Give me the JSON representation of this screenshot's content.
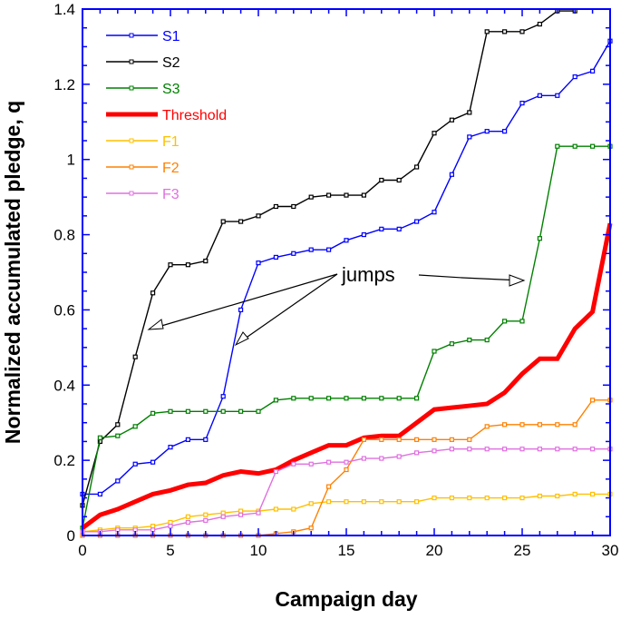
{
  "chart_data": {
    "type": "line",
    "title": "",
    "xlabel": "Campaign day",
    "ylabel": "Normalized accumulated pledge, q",
    "xlim": [
      0,
      30
    ],
    "ylim": [
      0,
      1.4
    ],
    "xticks": [
      "0",
      "5",
      "10",
      "15",
      "20",
      "25",
      "30"
    ],
    "yticks": [
      "0",
      "0.2",
      "0.4",
      "0.6",
      "0.8",
      "1",
      "1.2",
      "1.4"
    ],
    "grid": false,
    "legend_position": "top-left",
    "annotation": "jumps",
    "series": [
      {
        "name": "S1",
        "color": "#0000ff",
        "marker": "square",
        "values": [
          0.11,
          0.11,
          0.145,
          0.19,
          0.195,
          0.235,
          0.255,
          0.255,
          0.37,
          0.6,
          0.725,
          0.74,
          0.75,
          0.76,
          0.76,
          0.785,
          0.8,
          0.815,
          0.815,
          0.835,
          0.86,
          0.96,
          1.06,
          1.075,
          1.075,
          1.15,
          1.17,
          1.17,
          1.22,
          1.235,
          1.315
        ]
      },
      {
        "name": "S2",
        "color": "#000000",
        "marker": "square",
        "values": [
          0.08,
          0.25,
          0.295,
          0.475,
          0.645,
          0.72,
          0.72,
          0.73,
          0.835,
          0.835,
          0.85,
          0.875,
          0.875,
          0.9,
          0.905,
          0.905,
          0.905,
          0.945,
          0.945,
          0.98,
          1.07,
          1.105,
          1.125,
          1.34,
          1.34,
          1.34,
          1.36,
          1.395,
          1.395
        ]
      },
      {
        "name": "S3",
        "color": "#008000",
        "marker": "square",
        "values": [
          0.02,
          0.26,
          0.265,
          0.29,
          0.325,
          0.33,
          0.33,
          0.33,
          0.33,
          0.33,
          0.33,
          0.36,
          0.365,
          0.365,
          0.365,
          0.365,
          0.365,
          0.365,
          0.365,
          0.365,
          0.49,
          0.51,
          0.52,
          0.52,
          0.57,
          0.57,
          0.79,
          1.035,
          1.035,
          1.035,
          1.035
        ]
      },
      {
        "name": "Threshold",
        "color": "#ff0000",
        "marker": "none",
        "values": [
          0.02,
          0.055,
          0.07,
          0.09,
          0.11,
          0.12,
          0.135,
          0.14,
          0.16,
          0.17,
          0.165,
          0.175,
          0.2,
          0.22,
          0.24,
          0.24,
          0.26,
          0.265,
          0.265,
          0.3,
          0.335,
          0.34,
          0.345,
          0.35,
          0.38,
          0.43,
          0.47,
          0.47,
          0.55,
          0.595,
          0.83
        ]
      },
      {
        "name": "F1",
        "color": "#ffc000",
        "marker": "square",
        "values": [
          0.01,
          0.015,
          0.02,
          0.02,
          0.025,
          0.035,
          0.05,
          0.055,
          0.06,
          0.065,
          0.065,
          0.07,
          0.07,
          0.085,
          0.09,
          0.09,
          0.09,
          0.09,
          0.09,
          0.09,
          0.1,
          0.1,
          0.1,
          0.1,
          0.1,
          0.1,
          0.105,
          0.105,
          0.11,
          0.11,
          0.11
        ]
      },
      {
        "name": "F2",
        "color": "#ff8000",
        "marker": "square",
        "values": [
          0,
          0,
          0,
          0,
          0,
          0,
          0,
          0,
          0,
          0,
          0,
          0.005,
          0.01,
          0.02,
          0.13,
          0.175,
          0.255,
          0.255,
          0.255,
          0.255,
          0.255,
          0.255,
          0.255,
          0.29,
          0.295,
          0.295,
          0.295,
          0.295,
          0.295,
          0.36,
          0.36
        ]
      },
      {
        "name": "F3",
        "color": "#e070e0",
        "marker": "square",
        "values": [
          0.01,
          0.01,
          0.015,
          0.015,
          0.015,
          0.025,
          0.035,
          0.04,
          0.05,
          0.055,
          0.06,
          0.17,
          0.19,
          0.19,
          0.195,
          0.195,
          0.205,
          0.205,
          0.21,
          0.22,
          0.225,
          0.23,
          0.23,
          0.23,
          0.23,
          0.23,
          0.23,
          0.23,
          0.23,
          0.23,
          0.23
        ]
      }
    ]
  }
}
